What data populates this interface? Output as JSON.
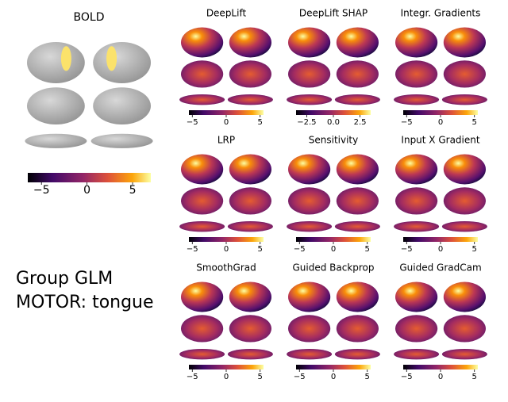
{
  "bold": {
    "title": "BOLD",
    "colorbar": {
      "lim": [
        -6.5,
        7
      ],
      "ticks": [
        {
          "value": -5,
          "label": "−5"
        },
        0,
        5
      ]
    }
  },
  "panels": [
    {
      "title": "DeepLift",
      "colorbar": {
        "lim": [
          -5.5,
          5.5
        ],
        "ticks": [
          {
            "value": -5,
            "label": "−5"
          },
          0,
          5
        ]
      }
    },
    {
      "title": "DeepLift SHAP",
      "colorbar": {
        "lim": [
          -3.5,
          3.5
        ],
        "ticks": [
          {
            "value": -2.5,
            "label": "−2.5"
          },
          {
            "value": 0,
            "label": "0.0"
          },
          2.5
        ]
      }
    },
    {
      "title": "Integr. Gradients",
      "colorbar": {
        "lim": [
          -5.5,
          5.5
        ],
        "ticks": [
          {
            "value": -5,
            "label": "−5"
          },
          0,
          5
        ]
      }
    },
    {
      "title": "LRP",
      "colorbar": {
        "lim": [
          -5.5,
          5.5
        ],
        "ticks": [
          {
            "value": -5,
            "label": "−5"
          },
          0,
          5
        ]
      }
    },
    {
      "title": "Sensitivity",
      "colorbar": {
        "lim": [
          -5.5,
          5.5
        ],
        "ticks": [
          {
            "value": -5,
            "label": "−5"
          },
          0,
          5
        ]
      }
    },
    {
      "title": "Input X Gradient",
      "colorbar": {
        "lim": [
          -5.5,
          5.5
        ],
        "ticks": [
          {
            "value": -5,
            "label": "−5"
          },
          0,
          5
        ]
      }
    },
    {
      "title": "SmoothGrad",
      "colorbar": {
        "lim": [
          -5.5,
          5.5
        ],
        "ticks": [
          {
            "value": -5,
            "label": "−5"
          },
          0,
          5
        ]
      }
    },
    {
      "title": "Guided Backprop",
      "colorbar": {
        "lim": [
          -5.5,
          5.5
        ],
        "ticks": [
          {
            "value": -5,
            "label": "−5"
          },
          0,
          5
        ]
      }
    },
    {
      "title": "Guided GradCam",
      "colorbar": {
        "lim": [
          -5.5,
          5.5
        ],
        "ticks": [
          {
            "value": -5,
            "label": "−5"
          },
          0,
          5
        ]
      }
    }
  ],
  "label": [
    "Group GLM",
    "MOTOR: tongue"
  ]
}
